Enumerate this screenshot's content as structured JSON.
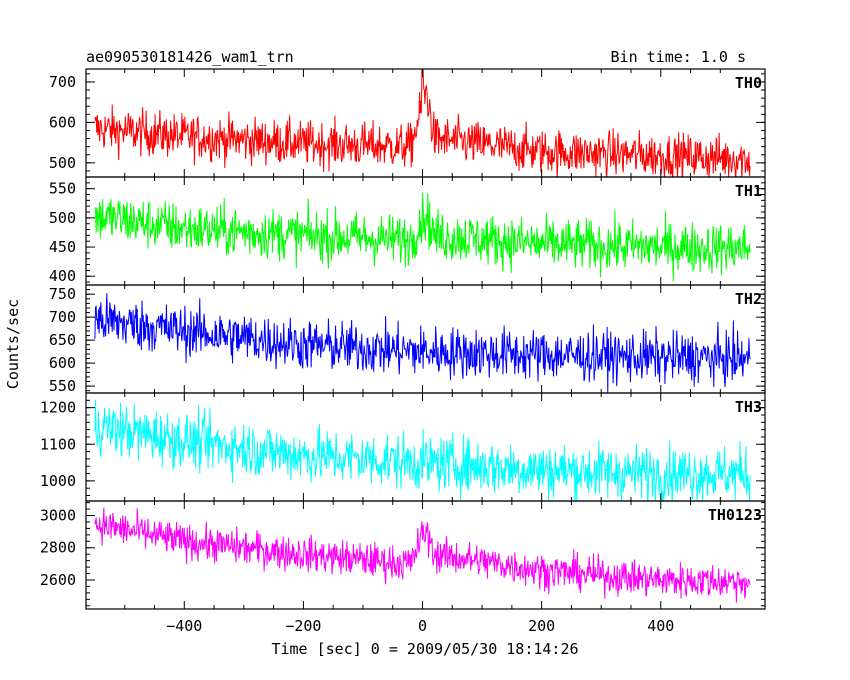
{
  "header": {
    "title": "ae090530181426_wam1_trn",
    "bin_time": "Bin time: 1.0 s"
  },
  "chart_data": {
    "type": "line",
    "xlabel": "Time [sec] 0 = 2009/05/30 18:14:26",
    "ylabel": "Counts/sec",
    "xlim": [
      -565,
      575
    ],
    "x_ticks": [
      -400,
      -200,
      0,
      200,
      400
    ],
    "x_tick_labels": [
      "−400",
      "−200",
      "0",
      "200",
      "400"
    ],
    "x_range": [
      -550,
      550
    ],
    "bin_time_s": 1.0,
    "panels": [
      {
        "name": "TH0",
        "color": "#ff0000",
        "ylim": [
          465,
          732
        ],
        "ticks": [
          500,
          600,
          700
        ],
        "tick_labels": [
          "500",
          "600",
          "700"
        ],
        "trend": [
          [
            -550,
            585
          ],
          [
            -400,
            565
          ],
          [
            -200,
            548
          ],
          [
            -20,
            540
          ],
          [
            0,
            640
          ],
          [
            6,
            680
          ],
          [
            20,
            560
          ],
          [
            200,
            528
          ],
          [
            400,
            518
          ],
          [
            550,
            510
          ]
        ],
        "noise": 28,
        "peak": {
          "x": 0,
          "value": 732
        }
      },
      {
        "name": "TH1",
        "color": "#00ff00",
        "ylim": [
          385,
          570
        ],
        "ticks": [
          400,
          450,
          500,
          550
        ],
        "tick_labels": [
          "400",
          "450",
          "500",
          "550"
        ],
        "trend": [
          [
            -550,
            503
          ],
          [
            -400,
            482
          ],
          [
            -200,
            470
          ],
          [
            -20,
            462
          ],
          [
            0,
            500
          ],
          [
            6,
            505
          ],
          [
            20,
            470
          ],
          [
            200,
            455
          ],
          [
            400,
            450
          ],
          [
            550,
            448
          ]
        ],
        "noise": 22
      },
      {
        "name": "TH2",
        "color": "#0000ff",
        "ylim": [
          535,
          770
        ],
        "ticks": [
          550,
          600,
          650,
          700,
          750
        ],
        "tick_labels": [
          "550",
          "600",
          "650",
          "700",
          "750"
        ],
        "trend": [
          [
            -550,
            695
          ],
          [
            -400,
            670
          ],
          [
            -200,
            640
          ],
          [
            0,
            625
          ],
          [
            200,
            618
          ],
          [
            400,
            612
          ],
          [
            550,
            610
          ]
        ],
        "noise": 28
      },
      {
        "name": "TH3",
        "color": "#00ffff",
        "ylim": [
          945,
          1240
        ],
        "ticks": [
          1000,
          1100,
          1200
        ],
        "tick_labels": [
          "1000",
          "1100",
          "1200"
        ],
        "trend": [
          [
            -550,
            1150
          ],
          [
            -400,
            1110
          ],
          [
            -200,
            1070
          ],
          [
            0,
            1050
          ],
          [
            200,
            1030
          ],
          [
            400,
            1020
          ],
          [
            550,
            1020
          ]
        ],
        "noise": 38
      },
      {
        "name": "TH0123",
        "color": "#ff00ff",
        "ylim": [
          2420,
          3090
        ],
        "ticks": [
          2600,
          2800,
          3000
        ],
        "tick_labels": [
          "2600",
          "2800",
          "3000"
        ],
        "trend": [
          [
            -550,
            2950
          ],
          [
            -400,
            2840
          ],
          [
            -200,
            2760
          ],
          [
            -20,
            2700
          ],
          [
            0,
            2880
          ],
          [
            6,
            2900
          ],
          [
            20,
            2760
          ],
          [
            200,
            2660
          ],
          [
            400,
            2600
          ],
          [
            550,
            2590
          ]
        ],
        "noise": 55
      }
    ]
  }
}
